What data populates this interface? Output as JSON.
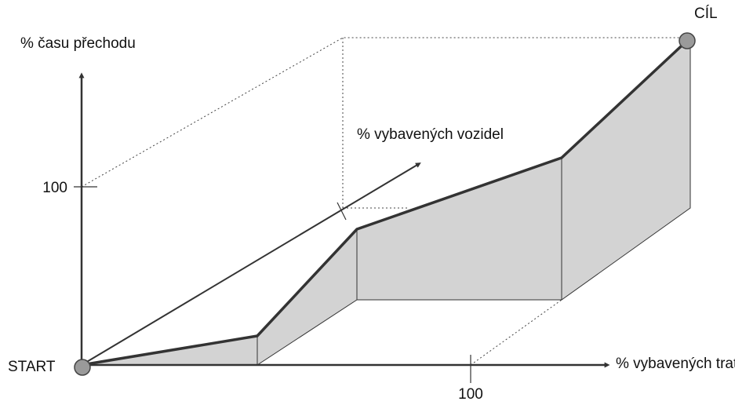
{
  "axes": {
    "y_label": "% času přechodu",
    "y_tick": "100",
    "z_label": "% vybavených vozidel",
    "x_label": "% vybavených tratí",
    "x_tick": "100"
  },
  "points": {
    "start": "START",
    "end": "CÍL"
  }
}
